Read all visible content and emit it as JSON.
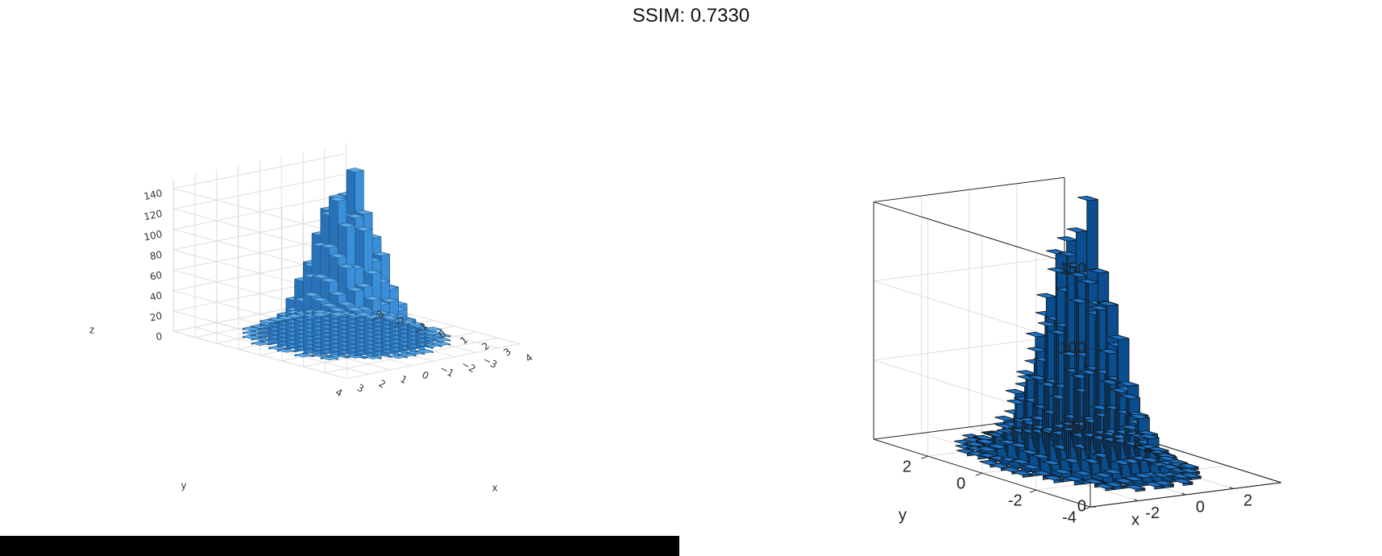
{
  "title": "SSIM: 0.7330",
  "colors": {
    "left_bar_top": "#5aa9e6",
    "left_bar_front": "#3b8fd8",
    "left_bar_side": "#2a72b7",
    "right_bar_top": "#1b72c4",
    "right_bar_front": "#0f62ad",
    "right_bar_side": "#0a4e8f",
    "grid": "#dedede",
    "axis": "#222222"
  },
  "chart_data": [
    {
      "type": "histogram3d",
      "panel": "left",
      "xlabel": "x",
      "ylabel": "y",
      "zlabel": "z",
      "xticks": [
        "−3",
        "−2",
        "−1",
        "0",
        "1",
        "2",
        "3",
        "4"
      ],
      "yticks": [
        "−3",
        "−2",
        "−1",
        "0",
        "1",
        "2",
        "3",
        "4"
      ],
      "zticks": [
        "0",
        "20",
        "40",
        "60",
        "80",
        "100",
        "120",
        "140"
      ],
      "xlim": [
        -4,
        4
      ],
      "ylim": [
        -4,
        4
      ],
      "zlim": [
        0,
        150
      ],
      "peak": 145,
      "bin_width": 0.4,
      "grid": true,
      "box": false
    },
    {
      "type": "histogram3d",
      "panel": "right",
      "xlabel": "x",
      "ylabel": "y",
      "xticks": [
        "-2",
        "0",
        "2"
      ],
      "yticks": [
        "-4",
        "-2",
        "0",
        "2"
      ],
      "zticks": [
        "0",
        "50",
        "100",
        "150"
      ],
      "xlim": [
        -4,
        4
      ],
      "ylim": [
        -4,
        4
      ],
      "zlim": [
        0,
        150
      ],
      "peak": 147,
      "bin_width": 0.4,
      "grid": true,
      "box": true
    }
  ]
}
